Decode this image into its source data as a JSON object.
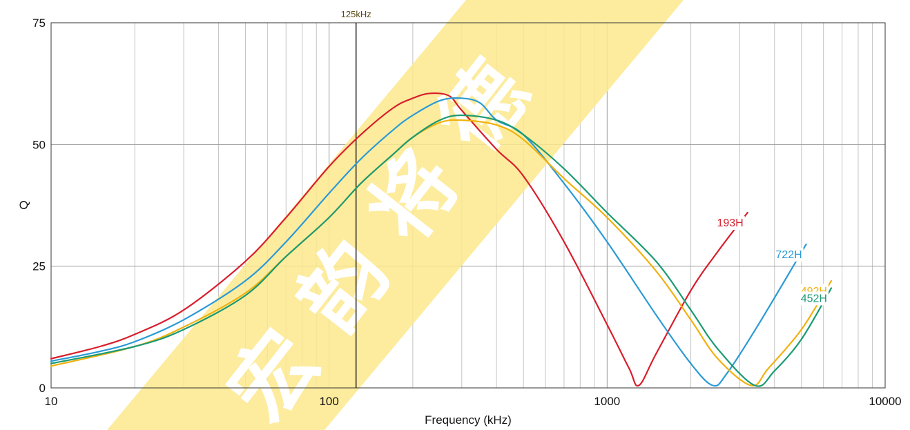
{
  "chart_data": {
    "type": "line",
    "xlabel": "Frequency (kHz)",
    "ylabel": "Q",
    "xscale": "log",
    "xlim": [
      10,
      10000
    ],
    "ylim": [
      0,
      75
    ],
    "x_ticks": [
      10,
      100,
      1000,
      10000
    ],
    "x_tick_labels": [
      "10",
      "100",
      "1000",
      "10000"
    ],
    "y_ticks": [
      0,
      25,
      50,
      75
    ],
    "y_tick_labels": [
      "0",
      "25",
      "50",
      "75"
    ],
    "grid": true,
    "marker": {
      "x": 125,
      "label": "125kHz"
    },
    "series": [
      {
        "name": "193H",
        "color": "#d81e2c",
        "x": [
          10,
          15,
          20,
          30,
          50,
          70,
          100,
          130,
          170,
          200,
          230,
          270,
          300,
          400,
          500,
          700,
          1000,
          1200,
          1300,
          1500,
          2000,
          2500,
          3200
        ],
        "y": [
          6,
          8.5,
          11,
          16,
          26,
          35,
          45.5,
          52,
          57.5,
          59.5,
          60.5,
          60,
          57,
          49,
          43.5,
          30,
          13,
          4,
          0.5,
          7,
          20,
          28,
          36
        ]
      },
      {
        "name": "722H",
        "color": "#2a9ad6",
        "x": [
          10,
          15,
          20,
          30,
          50,
          70,
          100,
          130,
          170,
          200,
          250,
          300,
          350,
          400,
          500,
          700,
          1000,
          1500,
          2000,
          2400,
          2700,
          3500,
          5200
        ],
        "y": [
          5.5,
          7.5,
          9.5,
          14,
          22,
          30,
          40,
          47,
          53,
          56,
          59,
          59.5,
          58.5,
          55,
          52,
          42,
          30,
          15,
          5,
          0.5,
          3,
          13,
          29.5
        ]
      },
      {
        "name": "492H",
        "color": "#f0b10f",
        "x": [
          10,
          20,
          30,
          50,
          70,
          100,
          130,
          170,
          200,
          250,
          300,
          400,
          500,
          700,
          1000,
          1500,
          2000,
          2500,
          3300,
          3800,
          5000,
          6400
        ],
        "y": [
          4.5,
          8.5,
          12.5,
          19.5,
          27,
          35,
          42,
          48,
          51.5,
          54.5,
          55,
          54,
          51,
          43,
          35,
          24,
          14,
          6,
          0.5,
          4,
          12,
          22
        ]
      },
      {
        "name": "452H",
        "color": "#1a9a73",
        "x": [
          10,
          20,
          30,
          50,
          70,
          100,
          130,
          170,
          200,
          250,
          300,
          400,
          500,
          700,
          1000,
          1500,
          2000,
          2500,
          3400,
          4000,
          5000,
          6400
        ],
        "y": [
          5,
          8.5,
          12,
          19,
          27,
          35,
          42,
          48,
          51.5,
          55,
          56,
          55,
          52,
          45,
          36,
          26,
          16,
          8,
          0.5,
          3.5,
          10,
          20.5
        ]
      }
    ]
  }
}
